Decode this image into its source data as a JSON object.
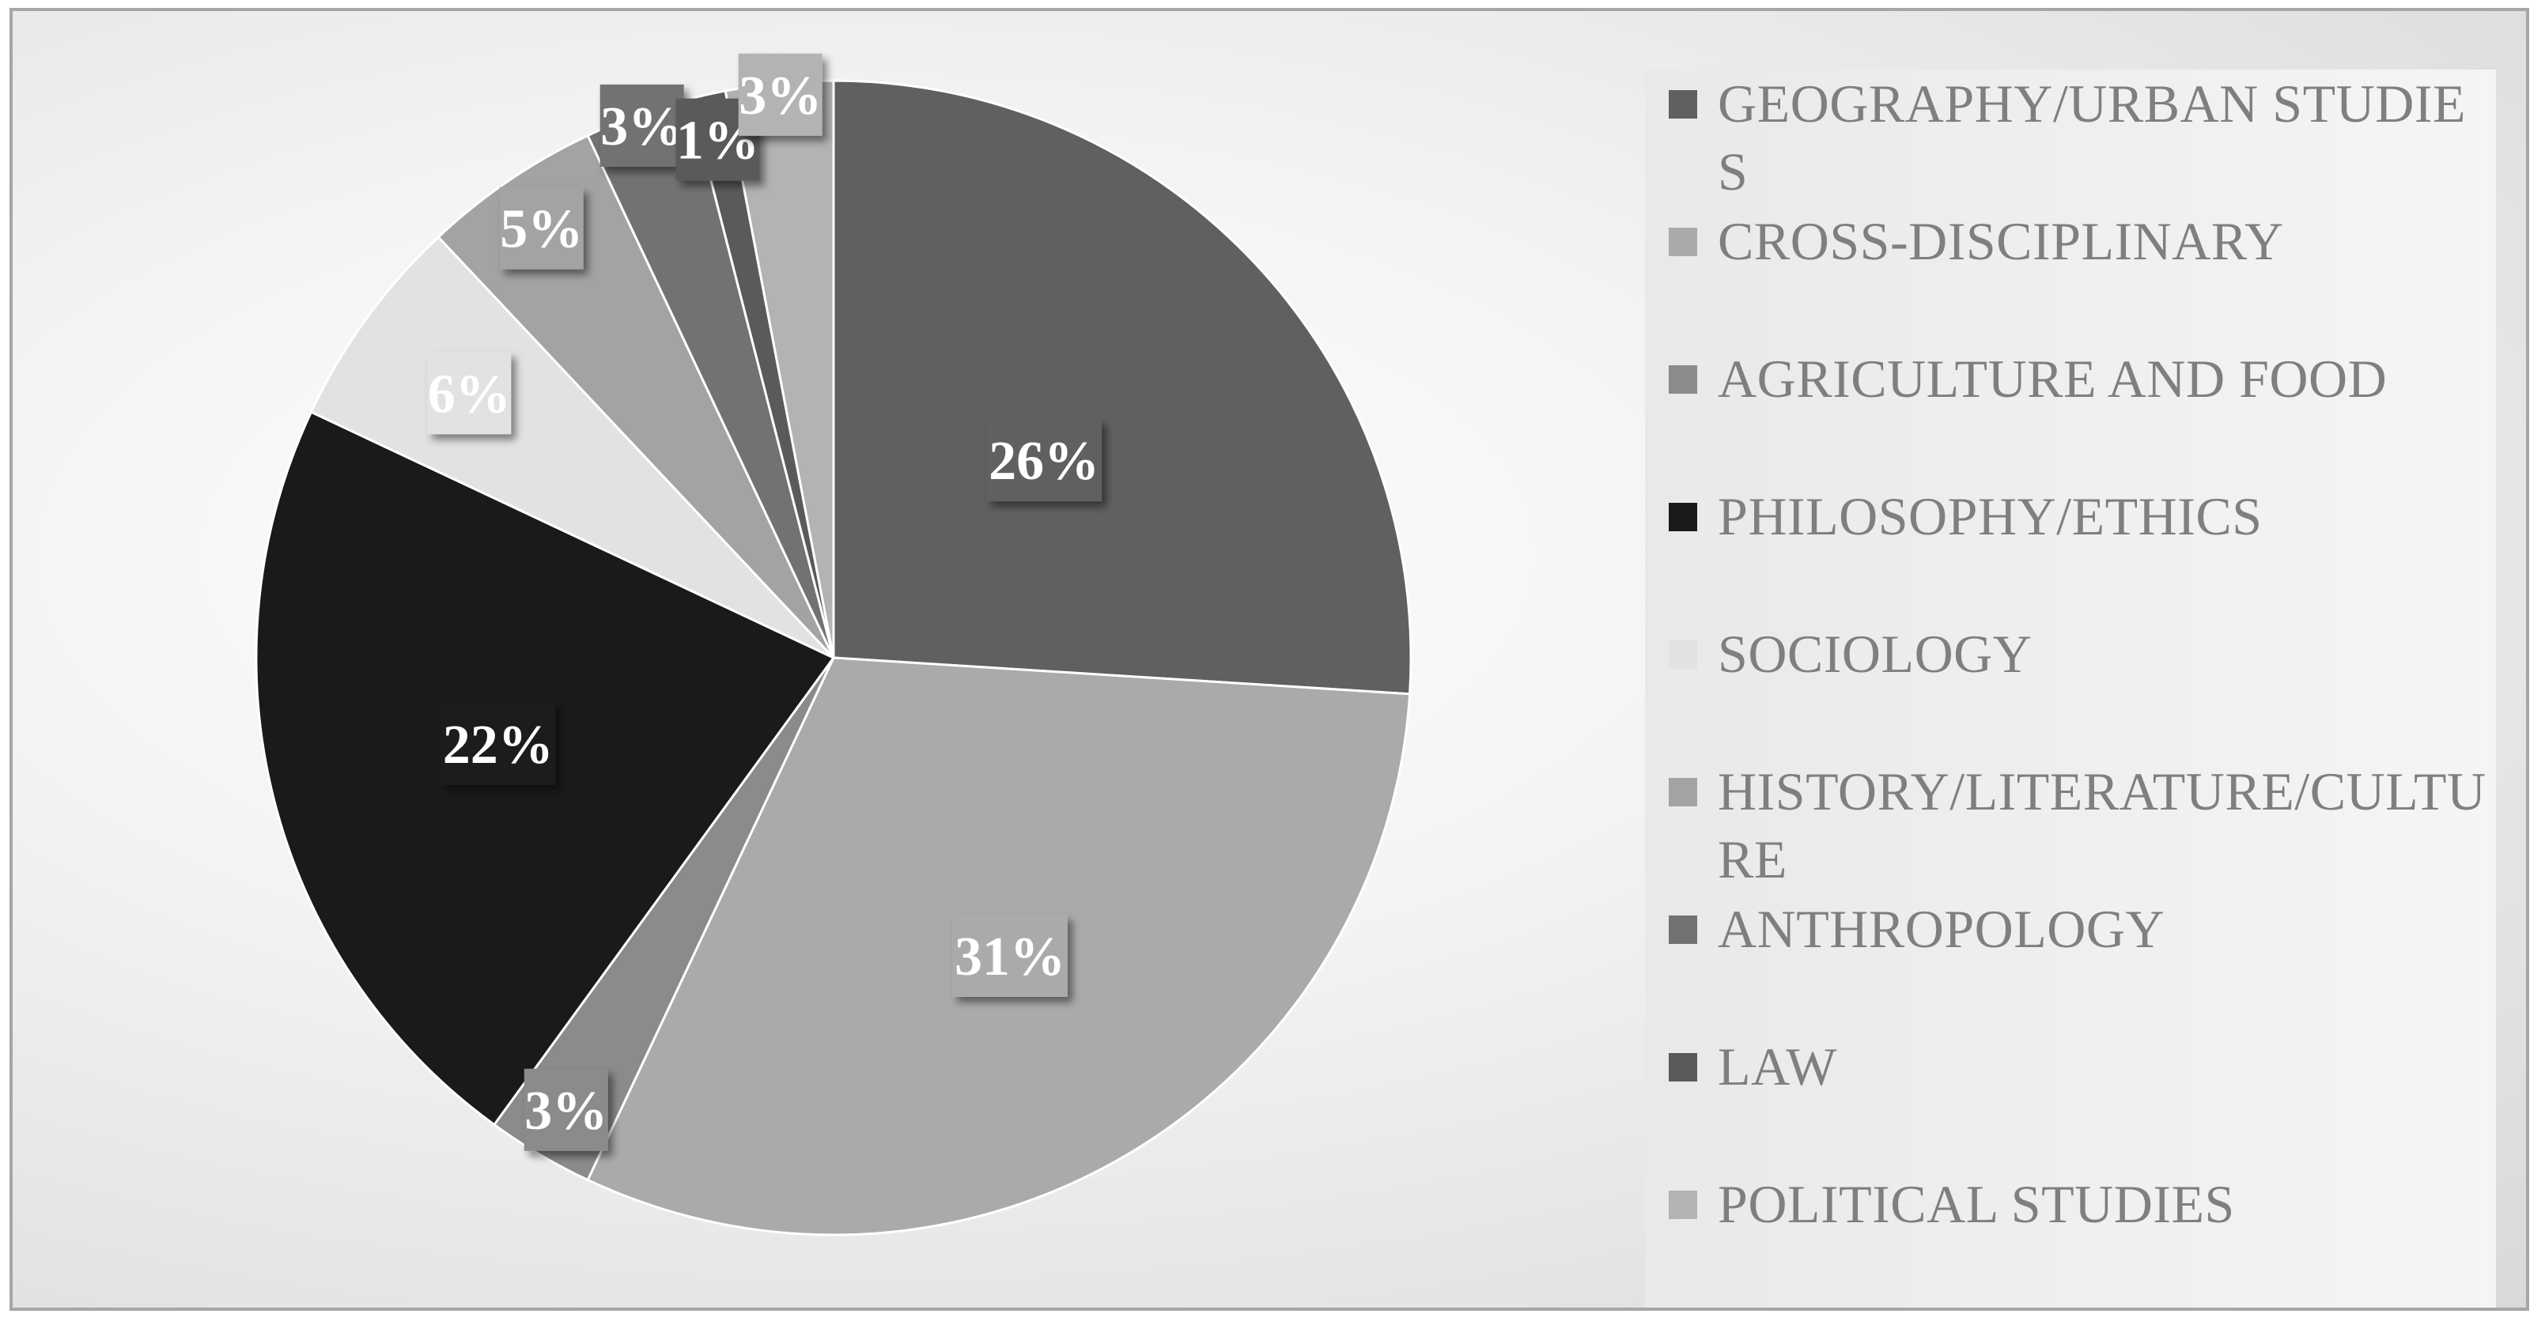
{
  "chart_data": {
    "type": "pie",
    "title": "",
    "series": [
      {
        "categories": [
          "GEOGRAPHY/URBAN STUDIES",
          "CROSS-DISCIPLINARY",
          "AGRICULTURE AND FOOD",
          "PHILOSOPHY/ETHICS",
          "SOCIOLOGY",
          "HISTORY/LITERATURE/CULTURE",
          "ANTHROPOLOGY",
          "LAW",
          "POLITICAL STUDIES"
        ],
        "values": [
          26,
          31,
          3,
          22,
          6,
          5,
          3,
          1,
          3
        ],
        "data_labels": [
          "26%",
          "31%",
          "3%",
          "22%",
          "6%",
          "5%",
          "3%",
          "1%",
          "3%"
        ],
        "colors": [
          "#606060",
          "#aaaaaa",
          "#8b8b8b",
          "#1a1a1a",
          "#e2e2e2",
          "#a3a3a3",
          "#727272",
          "#5a5a5a",
          "#b3b3b3"
        ]
      }
    ],
    "start_angle": "12 o'clock, clockwise",
    "legend_position": "right",
    "grid": false
  }
}
